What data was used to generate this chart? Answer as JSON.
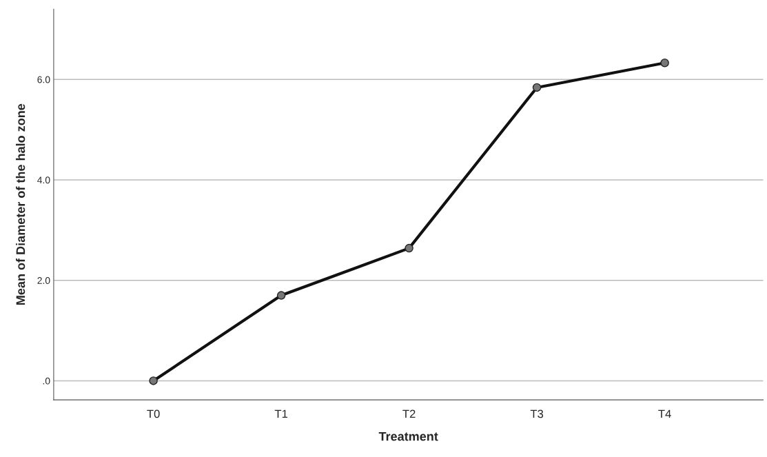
{
  "chart_data": {
    "type": "line",
    "xlabel": "Treatment",
    "ylabel": "Mean of Diameter of the halo zone",
    "categories": [
      "T0",
      "T1",
      "T2",
      "T3",
      "T4"
    ],
    "series": [
      {
        "color": "#111111",
        "values": [
          0,
          1.7,
          2.64,
          5.84,
          6.33
        ]
      }
    ],
    "ylim": [
      -0.38,
      7.4
    ],
    "yticks": [
      {
        "value": 0,
        "label": ".0"
      },
      {
        "value": 2,
        "label": "2.0"
      },
      {
        "value": 4,
        "label": "4.0"
      },
      {
        "value": 6,
        "label": "6.0"
      }
    ],
    "grid": "y",
    "marker": "circle",
    "line_style": "solid"
  }
}
